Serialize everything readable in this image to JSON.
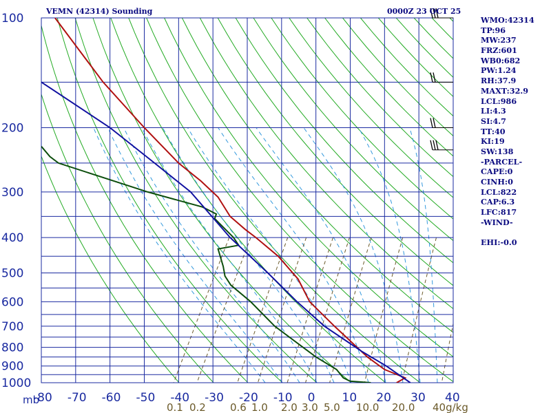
{
  "header": {
    "station": "VEMN (42314) Sounding",
    "time": "0000Z 23 OCT 25"
  },
  "stats": [
    "WMO:42314",
    "TP:96",
    "MW:237",
    "FRZ:601",
    "WB0:682",
    "PW:1.24",
    "RH:37.9",
    "MAXT:32.9",
    "LCL:986",
    "LI:4.3",
    "SI:4.7",
    "TT:40",
    "KI:19",
    "SW:138",
    "-PARCEL-",
    "CAPE:0",
    "CINH:0",
    "LCL:822",
    "CAP:6.3",
    "LFC:817",
    "-WIND-",
    "",
    "EHI:-0.0"
  ],
  "colors": {
    "isobar": "#1a2aa0",
    "isotherm": "#1a2aa0",
    "dry_adiabat": "#22aa22",
    "moist_adiabat": "#3399dd",
    "mixing_ratio": "#6b5a2a",
    "temperature": "#b01010",
    "dewpoint": "#0b4d0b",
    "parcel": "#1010a0",
    "wind_barb": "#000000"
  },
  "chart_data": {
    "type": "line",
    "title": "VEMN (42314) Sounding",
    "xlim": [
      -80,
      40
    ],
    "ylim": [
      1000,
      100
    ],
    "y_scale": "log",
    "pressure_labels": [
      "100",
      "200",
      "300",
      "400",
      "500",
      "600",
      "700",
      "800",
      "900",
      "1000"
    ],
    "temperature_labels": [
      "-80",
      "-70",
      "-60",
      "-50",
      "-40",
      "-30",
      "-20",
      "-10",
      "0",
      "10",
      "20",
      "30",
      "40"
    ],
    "axis_unit_label": "mb",
    "mixing_ratio_labels": [
      "0.1",
      "0.2",
      "0.6",
      "1.0",
      "2.0",
      "3.0",
      "5.0",
      "10.0",
      "20.0",
      "40g/kg"
    ],
    "series": [
      {
        "role": "temperature",
        "pressure": [
          1000,
          970,
          920,
          850,
          700,
          600,
          520,
          450,
          400,
          380,
          350,
          310,
          280,
          250,
          200,
          150,
          100
        ],
        "temp_c": [
          23.5,
          26.0,
          20.0,
          15.0,
          5.4,
          -1.8,
          -5.2,
          -11.0,
          -17.5,
          -20.6,
          -25.0,
          -28.5,
          -33.5,
          -40.0,
          -50.0,
          -62.0,
          -76.0
        ]
      },
      {
        "role": "dewpoint",
        "pressure": [
          1000,
          990,
          970,
          920,
          850,
          700,
          600,
          540,
          510,
          480,
          430,
          420,
          400,
          355,
          345,
          330,
          300,
          250,
          240,
          225
        ],
        "temp_c": [
          16.0,
          9.9,
          8.0,
          6.0,
          0.0,
          -12.0,
          -19.0,
          -24.8,
          -26.5,
          -27.0,
          -28.5,
          -22.5,
          -24.0,
          -29.5,
          -29.0,
          -33.0,
          -49.0,
          -75.0,
          -77.5,
          -80.0
        ]
      },
      {
        "role": "parcel",
        "pressure": [
          1000,
          900,
          822,
          700,
          600,
          500,
          400,
          300,
          250,
          200,
          150
        ],
        "temp_c": [
          27.5,
          20.5,
          13.5,
          2.5,
          -5.5,
          -14.0,
          -25.0,
          -36.5,
          -47.0,
          -60.0,
          -80.0
        ]
      }
    ],
    "wind_barbs": [
      {
        "pressure": 100,
        "direction_deg": 250,
        "speed_kt": 30
      },
      {
        "pressure": 150,
        "direction_deg": 270,
        "speed_kt": 20
      },
      {
        "pressure": 200,
        "direction_deg": 270,
        "speed_kt": 15
      },
      {
        "pressure": 230,
        "direction_deg": 270,
        "speed_kt": 25
      }
    ]
  }
}
